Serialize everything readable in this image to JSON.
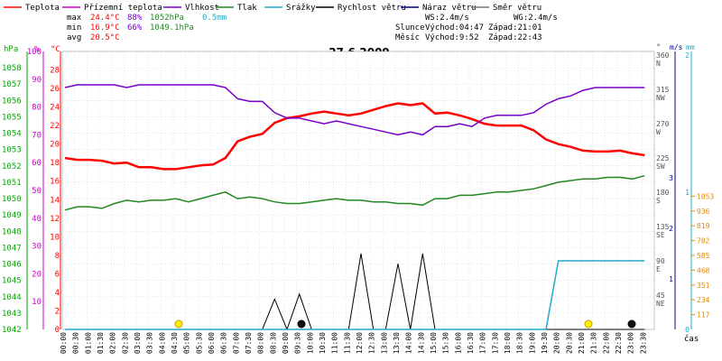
{
  "chart_data": {
    "type": "line",
    "title": "27.6.2009",
    "xlabel": "čas",
    "x": [
      "00:00",
      "00:30",
      "01:00",
      "01:30",
      "02:00",
      "02:30",
      "03:00",
      "03:30",
      "04:00",
      "04:30",
      "05:00",
      "05:30",
      "06:00",
      "06:30",
      "07:00",
      "07:30",
      "08:00",
      "08:30",
      "09:00",
      "09:30",
      "10:00",
      "10:30",
      "11:00",
      "11:30",
      "12:00",
      "12:30",
      "13:00",
      "13:30",
      "14:00",
      "14:30",
      "15:00",
      "15:30",
      "16:00",
      "16:30",
      "17:00",
      "17:30",
      "18:00",
      "18:30",
      "19:00",
      "19:30",
      "20:00",
      "20:30",
      "21:00",
      "21:30",
      "22:00",
      "22:30",
      "23:00",
      "23:30"
    ],
    "x_tick_labels": [
      "00:00",
      "00:30",
      "01:00",
      "01:30",
      "02:00",
      "02:30",
      "03:00",
      "03:30",
      "04:00",
      "04:30",
      "05:00",
      "05:30",
      "06:00",
      "06:30",
      "07:00",
      "07:30",
      "08:00",
      "08:30",
      "09:00",
      "09:30",
      "10:00",
      "10:30",
      "11:00",
      "11:30",
      "12:00",
      "12:30",
      "13:00",
      "13:30",
      "14:00",
      "14:30",
      "15:00",
      "15:30",
      "16:00",
      "16:30",
      "17:00",
      "17:30",
      "18:00",
      "18:30",
      "19:00",
      "19:30",
      "20:00",
      "20:30",
      "21:00",
      "21:30",
      "22:00",
      "22:30",
      "23:00",
      "23:30"
    ],
    "legend": [
      {
        "name": "Teplota",
        "color": "#ff0000"
      },
      {
        "name": "Přízemní teplota",
        "color": "#cc00cc"
      },
      {
        "name": "Vlhkost",
        "color": "#7700cc"
      },
      {
        "name": "Tlak",
        "color": "#228822"
      },
      {
        "name": "Srážky",
        "color": "#22aacc"
      },
      {
        "name": "Rychlost větru",
        "color": "#000000"
      },
      {
        "name": "Náraz větru",
        "color": "#000088"
      },
      {
        "name": "Směr větru",
        "color": "#777777"
      }
    ],
    "stats": {
      "max_label": "max",
      "min_label": "min",
      "avg_label": "avg",
      "temp_max": "24.4°C",
      "temp_min": "16.9°C",
      "temp_avg": "20.5°C",
      "hum_max": "88%",
      "hum_min": "66%",
      "pres_max": "1052hPa",
      "pres_min": "1049.1hPa",
      "rain_total": "0.5mm"
    },
    "info": {
      "ws": "WS:2.4m/s",
      "wg": "WG:2.4m/s",
      "sun_label": "Slunce",
      "sunrise": "Východ:04:47",
      "sunset": "Západ:21:01",
      "moon_label": "Měsíc",
      "moonrise": "Východ:9:52",
      "moonset": "Západ:22:43"
    },
    "axes": {
      "hpa": {
        "label": "hPa",
        "ticks": [
          "1042",
          "1043",
          "1044",
          "1045",
          "1046",
          "1047",
          "1048",
          "1049",
          "1050",
          "1051",
          "1052",
          "1053",
          "1054",
          "1055",
          "1056",
          "1057",
          "1058"
        ],
        "range": [
          1042,
          1059
        ]
      },
      "pct": {
        "label": "%",
        "ticks": [
          "0",
          "10",
          "20",
          "30",
          "40",
          "50",
          "60",
          "70",
          "80",
          "90",
          "100"
        ]
      },
      "degc": {
        "label": "°C",
        "ticks": [
          "0",
          "2",
          "4",
          "6",
          "8",
          "10",
          "12",
          "14",
          "16",
          "18",
          "20",
          "22",
          "24",
          "26",
          "28"
        ],
        "range": [
          0,
          30
        ]
      },
      "dir": {
        "label": "°",
        "ticks": [
          {
            "v": "0",
            "d": ""
          },
          {
            "v": "45",
            "d": "NE"
          },
          {
            "v": "90",
            "d": "E"
          },
          {
            "v": "135",
            "d": "SE"
          },
          {
            "v": "180",
            "d": "S"
          },
          {
            "v": "225",
            "d": "SW"
          },
          {
            "v": "270",
            "d": "W"
          },
          {
            "v": "315",
            "d": "NW"
          },
          {
            "v": "360",
            "d": "N"
          }
        ]
      },
      "ms": {
        "label": "m/s",
        "ticks": [
          "0",
          "1",
          "2",
          "3"
        ],
        "range": [
          0,
          3
        ]
      },
      "mm": {
        "label": "mm",
        "ticks": [
          "0",
          "1",
          "2"
        ],
        "range": [
          0,
          2
        ]
      },
      "right_values": {
        "ticks": [
          "117",
          "234",
          "351",
          "468",
          "585",
          "702",
          "819",
          "936",
          "1053"
        ],
        "range": [
          0,
          1170
        ]
      }
    },
    "series": [
      {
        "name": "Teplota",
        "color": "#ff0000",
        "axis": "degc",
        "values": [
          18.5,
          18.3,
          18.3,
          18.2,
          17.9,
          18.0,
          17.5,
          17.5,
          17.3,
          17.3,
          17.5,
          17.7,
          17.8,
          18.5,
          20.3,
          20.8,
          21.1,
          22.3,
          22.8,
          23.0,
          23.3,
          23.5,
          23.3,
          23.1,
          23.3,
          23.7,
          24.1,
          24.4,
          24.2,
          24.4,
          23.3,
          23.4,
          23.1,
          22.7,
          22.2,
          22.0,
          22.0,
          22.0,
          21.5,
          20.5,
          20.0,
          19.7,
          19.3,
          19.2,
          19.2,
          19.3,
          19.0,
          18.8
        ]
      },
      {
        "name": "Vlhkost",
        "color": "#7700cc",
        "axis": "pct",
        "values": [
          87,
          88,
          88,
          88,
          88,
          87,
          88,
          88,
          88,
          88,
          88,
          88,
          88,
          87,
          83,
          82,
          82,
          78,
          76,
          76,
          75,
          74,
          75,
          74,
          73,
          72,
          71,
          70,
          71,
          70,
          73,
          73,
          74,
          73,
          76,
          77,
          77,
          77,
          78,
          81,
          83,
          84,
          86,
          87,
          87,
          87,
          87,
          87
        ]
      },
      {
        "name": "Tlak",
        "color": "#228822",
        "axis": "hpa",
        "values": [
          1049.3,
          1049.5,
          1049.5,
          1049.4,
          1049.7,
          1049.9,
          1049.8,
          1049.9,
          1049.9,
          1050.0,
          1049.8,
          1050.0,
          1050.2,
          1050.4,
          1050.0,
          1050.1,
          1050.0,
          1049.8,
          1049.7,
          1049.7,
          1049.8,
          1049.9,
          1050.0,
          1049.9,
          1049.9,
          1049.8,
          1049.8,
          1049.7,
          1049.7,
          1049.6,
          1050.0,
          1050.0,
          1050.2,
          1050.2,
          1050.3,
          1050.4,
          1050.4,
          1050.5,
          1050.6,
          1050.8,
          1051.0,
          1051.1,
          1051.2,
          1051.2,
          1051.3,
          1051.3,
          1051.2,
          1051.4
        ]
      },
      {
        "name": "Rychlost větru",
        "color": "#000000",
        "axis": "ms",
        "values": [
          0,
          0,
          0,
          0,
          0,
          0,
          0,
          0,
          0,
          0,
          0,
          0,
          0,
          0,
          0,
          0,
          0,
          0.6,
          0,
          0.7,
          0,
          0,
          0,
          0,
          1.5,
          0,
          0,
          1.3,
          0,
          1.5,
          0,
          0,
          0,
          0,
          0,
          0,
          0,
          0,
          0,
          0,
          0,
          0,
          0,
          0,
          0,
          0,
          0,
          0
        ]
      },
      {
        "name": "Směr větru",
        "color": "#777777",
        "axis": "dir",
        "values": [
          null,
          null,
          null,
          null,
          null,
          null,
          null,
          null,
          null,
          null,
          null,
          null,
          null,
          null,
          null,
          null,
          null,
          null,
          null,
          null,
          null,
          null,
          null,
          null,
          null,
          null,
          null,
          null,
          null,
          null,
          null,
          null,
          null,
          null,
          null,
          null,
          null,
          null,
          null,
          null,
          null,
          null,
          null,
          null,
          null,
          null,
          null,
          null
        ]
      },
      {
        "name": "Srážky",
        "color": "#22aacc",
        "axis": "mm",
        "values": [
          0,
          0,
          0,
          0,
          0,
          0,
          0,
          0,
          0,
          0,
          0,
          0,
          0,
          0,
          0,
          0,
          0,
          0,
          0,
          0,
          0,
          0,
          0,
          0,
          0,
          0,
          0,
          0,
          0,
          0,
          0,
          0,
          0,
          0,
          0,
          0,
          0,
          0,
          0,
          0,
          0.5,
          0.5,
          0.5,
          0.5,
          0.5,
          0.5,
          0.5,
          0.5
        ]
      }
    ]
  }
}
